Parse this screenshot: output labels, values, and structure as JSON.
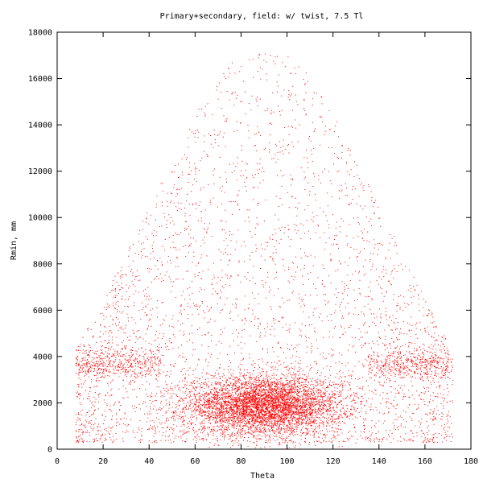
{
  "chart_data": {
    "type": "scatter",
    "title": "Primary+secondary, field: w/ twist, 7.5 Tl",
    "xlabel": "Theta",
    "ylabel": "Rmin, mm",
    "xlim": [
      0,
      180
    ],
    "ylim": [
      0,
      18000
    ],
    "xticks": [
      0,
      20,
      40,
      60,
      80,
      100,
      120,
      140,
      160,
      180
    ],
    "yticks": [
      0,
      2000,
      4000,
      6000,
      8000,
      10000,
      12000,
      14000,
      16000,
      18000
    ],
    "grid": false,
    "legend": "none",
    "point_color": "#ff0000",
    "distribution": {
      "core_cluster": {
        "x_mean": 90,
        "x_sd": 17,
        "y_mean": 1900,
        "y_sd": 650
      },
      "shoulder_band": {
        "y_mean": 3700,
        "y_sd": 350,
        "x_ranges": [
          [
            8,
            45
          ],
          [
            135,
            170
          ]
        ]
      },
      "envelope": [
        [
          8,
          4300
        ],
        [
          20,
          6500
        ],
        [
          40,
          10500
        ],
        [
          60,
          14500
        ],
        [
          75,
          16800
        ],
        [
          90,
          17300
        ],
        [
          105,
          16800
        ],
        [
          120,
          14500
        ],
        [
          140,
          10500
        ],
        [
          160,
          6500
        ],
        [
          172,
          4300
        ]
      ]
    }
  }
}
